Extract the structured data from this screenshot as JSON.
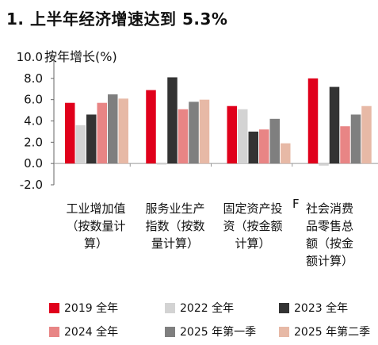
{
  "title": "1. 上半年经济增速达到 5.3%",
  "chart_data": {
    "type": "bar",
    "ylabel": "按年增长(%)",
    "ylim": [
      -2.0,
      10.0
    ],
    "yticks": [
      "10.0",
      "8.0",
      "6.0",
      "4.0",
      "2.0",
      "0.0",
      "-2.0"
    ],
    "ytick_values": [
      10,
      8,
      6,
      4,
      2,
      0,
      -2
    ],
    "categories": [
      [
        "工业增加值",
        "（按数量计",
        "算）"
      ],
      [
        "服务业生产",
        "指数（按数",
        "量计算）"
      ],
      [
        "固定资产投",
        "资（按金额",
        "计算）"
      ],
      [
        "社会消费",
        "品零售总",
        "额（按金",
        "额计算）"
      ]
    ],
    "series": [
      {
        "name": "2019 全年",
        "color": "#e0001b",
        "values": [
          5.7,
          6.9,
          5.4,
          8.0
        ]
      },
      {
        "name": "2022 全年",
        "color": "#d3d3d3",
        "values": [
          3.6,
          -0.1,
          5.1,
          -0.2
        ]
      },
      {
        "name": "2023 全年",
        "color": "#333333",
        "values": [
          4.6,
          8.1,
          3.0,
          7.2
        ]
      },
      {
        "name": "2024 全年",
        "color": "#e88585",
        "values": [
          5.7,
          5.1,
          3.2,
          3.5
        ]
      },
      {
        "name": "2025 年第一季",
        "color": "#7f7f7f",
        "values": [
          6.5,
          5.8,
          4.2,
          4.6
        ]
      },
      {
        "name": "2025 年第二季",
        "color": "#e7b9a6",
        "values": [
          6.1,
          6.0,
          1.9,
          5.4
        ]
      }
    ]
  },
  "stray_mark": "F"
}
